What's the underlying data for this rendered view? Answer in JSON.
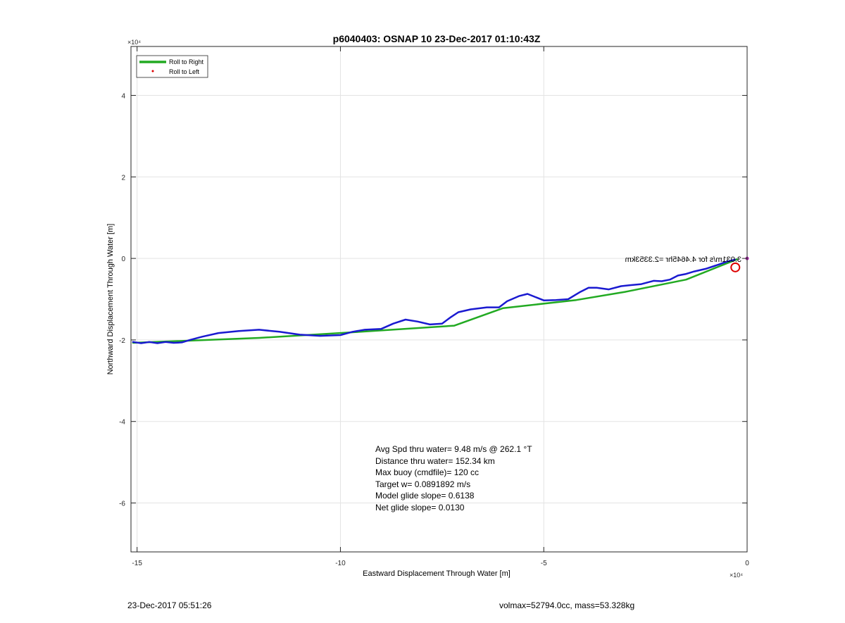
{
  "chart_data": {
    "type": "line",
    "title": "p6040403: OSNAP 10 23-Dec-2017 01:10:43Z",
    "xlabel": "Eastward Displacement Through Water [m]",
    "ylabel": "Northward Displacement Through Water [m]",
    "x_exponent_label": "×10⁴",
    "y_exponent_label": "×10⁴",
    "xlim": [
      -15.15,
      0
    ],
    "ylim": [
      -7.2,
      5.2
    ],
    "x_ticks": [
      -15,
      -10,
      -5,
      0
    ],
    "x_tick_labels": [
      "-15",
      "-10",
      "-5",
      "0"
    ],
    "y_ticks": [
      -6,
      -4,
      -2,
      0,
      2,
      4
    ],
    "y_tick_labels": [
      "-6",
      "-4",
      "-2",
      "0",
      "2",
      "4"
    ],
    "grid": true,
    "legend_position": "top-left",
    "legend": [
      {
        "label": "Roll to Right",
        "color": "#22aa22",
        "style": "line"
      },
      {
        "label": "Roll to Left",
        "color": "#dd0000",
        "style": "dot"
      }
    ],
    "series": [
      {
        "name": "Roll to Right",
        "color": "#22aa22",
        "x": [
          -15.1,
          -12.0,
          -9.5,
          -7.2,
          -6.0,
          -4.2,
          -3.0,
          -1.5,
          -0.25
        ],
        "y": [
          -2.07,
          -1.95,
          -1.8,
          -1.65,
          -1.22,
          -1.02,
          -0.82,
          -0.52,
          -0.02
        ]
      },
      {
        "color": "#1a1ad0",
        "x": [
          -15.1,
          -14.9,
          -14.7,
          -14.5,
          -14.3,
          -14.1,
          -13.9,
          -13.7,
          -13.4,
          -13.0,
          -12.5,
          -12.0,
          -11.5,
          -11.0,
          -10.5,
          -10.0,
          -9.7,
          -9.4,
          -9.0,
          -8.7,
          -8.4,
          -8.1,
          -7.8,
          -7.5,
          -7.3,
          -7.1,
          -6.8,
          -6.4,
          -6.1,
          -5.9,
          -5.6,
          -5.4,
          -5.2,
          -5.0,
          -4.7,
          -4.4,
          -4.1,
          -3.9,
          -3.7,
          -3.4,
          -3.1,
          -2.9,
          -2.6,
          -2.3,
          -2.1,
          -1.9,
          -1.7,
          -1.5,
          -1.3,
          -1.0,
          -0.7,
          -0.5,
          -0.3
        ],
        "y": [
          -2.05,
          -2.08,
          -2.05,
          -2.08,
          -2.05,
          -2.07,
          -2.06,
          -2.0,
          -1.92,
          -1.83,
          -1.78,
          -1.75,
          -1.8,
          -1.87,
          -1.9,
          -1.88,
          -1.8,
          -1.75,
          -1.73,
          -1.6,
          -1.5,
          -1.55,
          -1.62,
          -1.6,
          -1.45,
          -1.32,
          -1.25,
          -1.2,
          -1.2,
          -1.05,
          -0.92,
          -0.87,
          -0.95,
          -1.03,
          -1.02,
          -1.0,
          -0.82,
          -0.72,
          -0.72,
          -0.76,
          -0.68,
          -0.66,
          -0.63,
          -0.55,
          -0.56,
          -0.52,
          -0.42,
          -0.38,
          -0.32,
          -0.25,
          -0.15,
          -0.08,
          -0.03
        ]
      }
    ],
    "markers": [
      {
        "type": "circle",
        "color": "#dd0000",
        "x": -0.29,
        "y": -0.22
      },
      {
        "type": "dot",
        "color": "#aa22aa",
        "x": 0,
        "y": 0
      }
    ],
    "annotations": {
      "mirrored_label": "3.031m/s for 4.4645hr =2.3353km",
      "stats": [
        "Avg Spd thru water=  9.48 m/s @ 262.1 °T",
        "Distance thru water= 152.34 km",
        "Max buoy (cmdfile)= 120 cc",
        "Target w= 0.0891892 m/s",
        "Model glide slope= 0.6138",
        "Net glide slope= 0.0130"
      ]
    }
  },
  "footer": {
    "left": "23-Dec-2017 05:51:26",
    "right": "volmax=52794.0cc, mass=53.328kg"
  }
}
